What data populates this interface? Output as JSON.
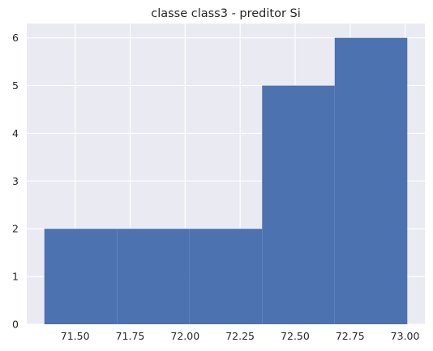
{
  "chart_data": {
    "type": "bar",
    "subtype": "histogram",
    "title": "classe class3 - preditor Si",
    "xlabel": "",
    "ylabel": "",
    "bins": [
      {
        "x_start": 71.36,
        "x_end": 71.69,
        "count": 2
      },
      {
        "x_start": 71.69,
        "x_end": 72.02,
        "count": 2
      },
      {
        "x_start": 72.02,
        "x_end": 72.35,
        "count": 2
      },
      {
        "x_start": 72.35,
        "x_end": 72.68,
        "count": 5
      },
      {
        "x_start": 72.68,
        "x_end": 73.01,
        "count": 6
      }
    ],
    "xlim": [
      71.28,
      73.09
    ],
    "ylim": [
      0,
      6.3
    ],
    "xticks": [
      71.5,
      71.75,
      72.0,
      72.25,
      72.5,
      72.75,
      73.0
    ],
    "xtick_labels": [
      "71.50",
      "71.75",
      "72.00",
      "72.25",
      "72.50",
      "72.75",
      "73.00"
    ],
    "yticks": [
      0,
      1,
      2,
      3,
      4,
      5,
      6
    ],
    "ytick_labels": [
      "0",
      "1",
      "2",
      "3",
      "4",
      "5",
      "6"
    ],
    "grid": true,
    "legend": "none",
    "colors": {
      "bar": "#4c72b0",
      "plot_background": "#eaeaf2",
      "grid": "#ffffff",
      "text": "#262626"
    }
  }
}
